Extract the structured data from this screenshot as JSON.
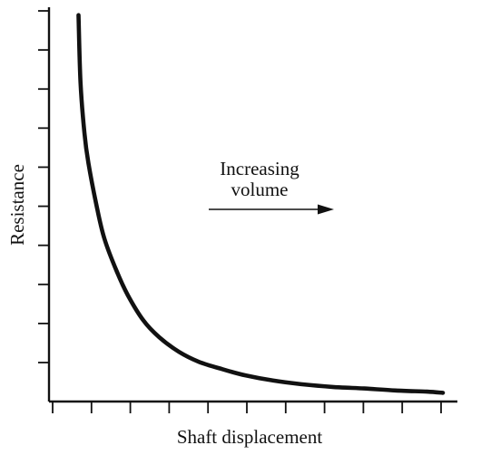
{
  "chart_data": {
    "type": "line",
    "xlabel": "Shaft displacement",
    "ylabel": "Resistance",
    "annotation": {
      "lines": [
        "Increasing",
        "volume"
      ],
      "arrow_direction": "right"
    },
    "x_ticks": 11,
    "y_ticks": 10,
    "xlim": [
      0,
      10
    ],
    "ylim": [
      0,
      10
    ],
    "grid": false,
    "series": [
      {
        "color": "#111111",
        "x": [
          0.75,
          0.8,
          0.9,
          1.0,
          1.2,
          1.4,
          1.7,
          2.0,
          2.4,
          2.8,
          3.3,
          3.8,
          4.4,
          5.0,
          5.7,
          6.4,
          7.2,
          8.0,
          8.8,
          9.6,
          10.0
        ],
        "y": [
          9.8,
          8.1,
          6.8,
          6.05,
          5.0,
          4.15,
          3.35,
          2.7,
          2.05,
          1.63,
          1.26,
          1.01,
          0.82,
          0.66,
          0.53,
          0.44,
          0.37,
          0.33,
          0.28,
          0.25,
          0.22
        ]
      }
    ]
  }
}
